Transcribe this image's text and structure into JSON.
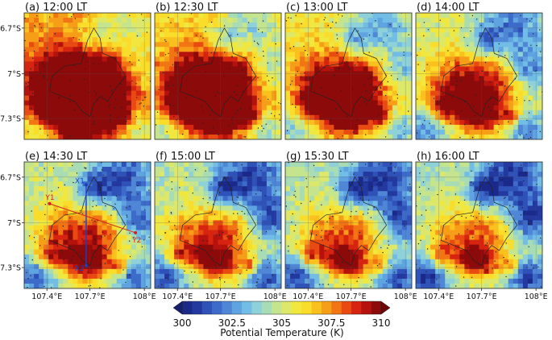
{
  "panels": [
    {
      "label": "(a) 12:00 LT",
      "warmth": 0.95
    },
    {
      "label": "(b) 12:30 LT",
      "warmth": 0.8
    },
    {
      "label": "(c) 13:00 LT",
      "warmth": 0.65
    },
    {
      "label": "(d) 14:00 LT",
      "warmth": 0.5
    },
    {
      "label": "(e) 14:30 LT",
      "warmth": 0.4
    },
    {
      "label": "(f) 15:00 LT",
      "warmth": 0.35
    },
    {
      "label": "(g) 15:30 LT",
      "warmth": 0.32
    },
    {
      "label": "(h) 16:00 LT",
      "warmth": 0.3
    }
  ],
  "axes": {
    "lat_ticks": [
      "6.7°S",
      "7°S",
      "7.3°S"
    ],
    "lon_ticks": [
      "107.4°E",
      "107.7°E",
      "108°E"
    ]
  },
  "cross_sections": {
    "x1": "X1",
    "x2": "X2",
    "y1": "Y1",
    "y2": "Y2",
    "x_color": "#1f3fbf",
    "y_color": "#d42020"
  },
  "colorbar": {
    "title": "Potential Temperature (K)",
    "tick_labels": [
      "300",
      "302.5",
      "305",
      "307.5",
      "310"
    ],
    "colors": [
      "#1b2a8a",
      "#23399f",
      "#2e52b8",
      "#3c6bc9",
      "#4f86d6",
      "#5fa4e0",
      "#72bde6",
      "#8fd1d8",
      "#a8dcb4",
      "#c4e48e",
      "#dde86a",
      "#f0e73f",
      "#fadc2a",
      "#f9c01e",
      "#f79e18",
      "#f27514",
      "#e84a12",
      "#d62410",
      "#b5120d",
      "#8c0a0a"
    ]
  }
}
